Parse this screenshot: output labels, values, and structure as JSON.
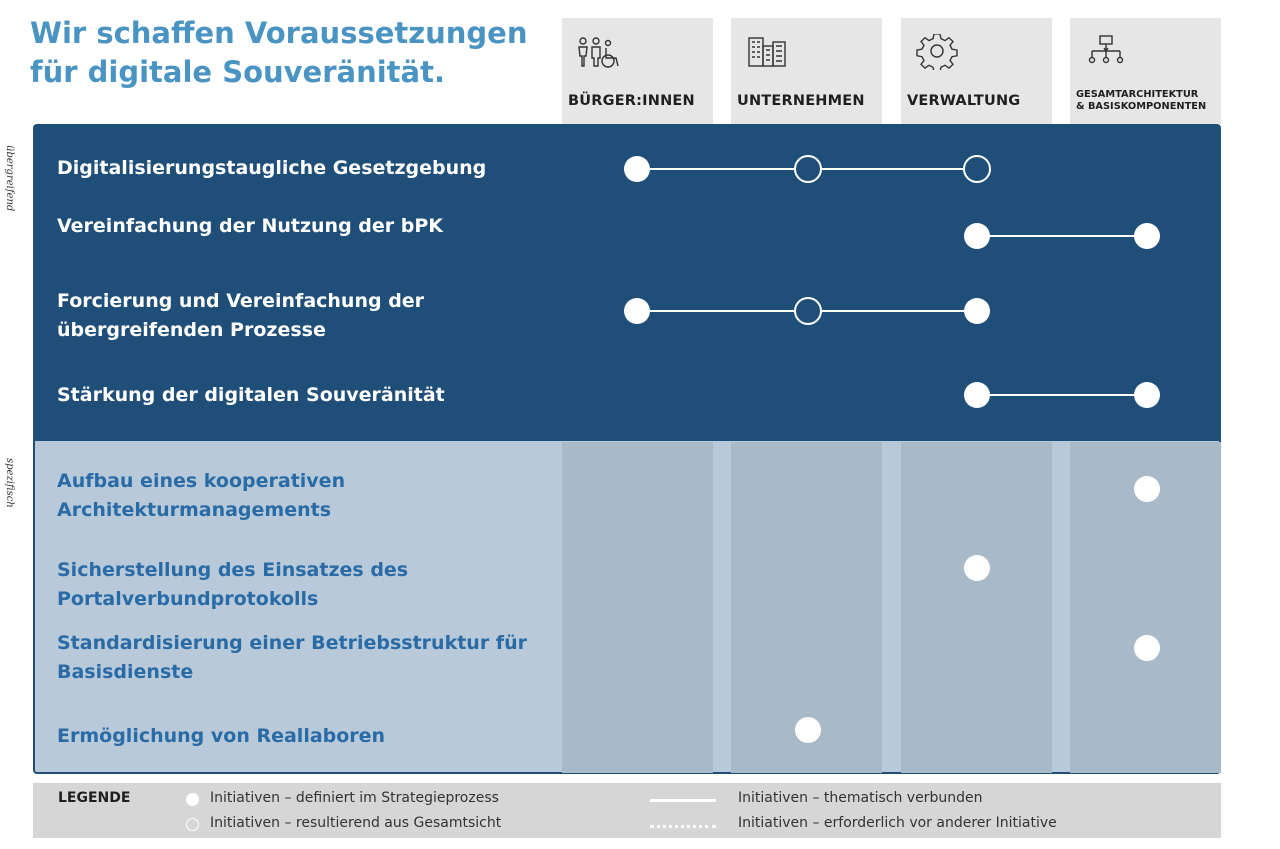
{
  "title": "Wir schaffen Voraussetzungen für digitale Souveränität.",
  "columns": [
    {
      "label": "BÜRGER:INNEN",
      "icon": "people-icon"
    },
    {
      "label": "UNTERNEHMEN",
      "icon": "buildings-icon"
    },
    {
      "label": "VERWALTUNG",
      "icon": "gear-icon"
    },
    {
      "label_line1": "GESAMTARCHITEKTUR",
      "label_line2": "& BASISKOMPONENTEN",
      "icon": "org-chart-icon"
    }
  ],
  "groups": {
    "overarching": "übergreifend",
    "specific": "spezifisch"
  },
  "rows": [
    {
      "label": "Digitalisierungstaugliche Gesetzgebung",
      "group": "overarching",
      "marks": [
        {
          "col": 0,
          "type": "filled"
        },
        {
          "col": 1,
          "type": "hollow"
        },
        {
          "col": 2,
          "type": "hollow"
        }
      ],
      "connected": true
    },
    {
      "label": "Vereinfachung der Nutzung der bPK",
      "group": "overarching",
      "marks": [
        {
          "col": 2,
          "type": "filled"
        },
        {
          "col": 3,
          "type": "filled"
        }
      ],
      "connected": true
    },
    {
      "label_line1": "Forcierung und Vereinfachung der",
      "label_line2": "übergreifenden Prozesse",
      "group": "overarching",
      "marks": [
        {
          "col": 0,
          "type": "filled"
        },
        {
          "col": 1,
          "type": "hollow"
        },
        {
          "col": 2,
          "type": "filled"
        }
      ],
      "connected": true
    },
    {
      "label": "Stärkung der digitalen Souveränität",
      "group": "overarching",
      "marks": [
        {
          "col": 2,
          "type": "filled"
        },
        {
          "col": 3,
          "type": "filled"
        }
      ],
      "connected": true
    },
    {
      "label_line1": "Aufbau eines kooperativen",
      "label_line2": "Architekturmanagements",
      "group": "specific",
      "marks": [
        {
          "col": 3,
          "type": "filled"
        }
      ],
      "connected": false
    },
    {
      "label_line1": "Sicherstellung des Einsatzes des",
      "label_line2": "Portalverbundprotokolls",
      "group": "specific",
      "marks": [
        {
          "col": 2,
          "type": "filled"
        }
      ],
      "connected": false
    },
    {
      "label_line1": "Standardisierung einer Betriebsstruktur für",
      "label_line2": "Basisdienste",
      "group": "specific",
      "marks": [
        {
          "col": 3,
          "type": "filled"
        }
      ],
      "connected": false
    },
    {
      "label": "Ermöglichung von Reallaboren",
      "group": "specific",
      "marks": [
        {
          "col": 1,
          "type": "filled"
        }
      ],
      "connected": false
    }
  ],
  "legend": {
    "title": "LEGENDE",
    "items": [
      {
        "symbol": "filled-dot",
        "text": "Initiativen – definiert im Strategieprozess"
      },
      {
        "symbol": "hollow-dot",
        "text": "Initiativen – resultierend aus Gesamtsicht"
      },
      {
        "symbol": "solid-line",
        "text": "Initiativen – thematisch verbunden"
      },
      {
        "symbol": "dotted-line",
        "text": "Initiativen – erforderlich vor anderer Initiative"
      }
    ]
  },
  "colors": {
    "dark_panel": "#1f4e79",
    "light_panel": "#b8cad9",
    "stripe": "#a8b9c7",
    "title": "#4a94c3",
    "specific_text": "#2a6ba5"
  }
}
